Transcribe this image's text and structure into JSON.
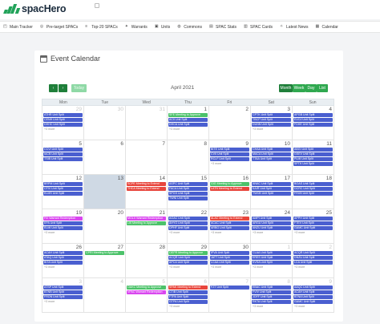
{
  "brand": {
    "name": "spacHero"
  },
  "nav": [
    {
      "icon": "grid-icon",
      "glyph": "◰",
      "label": "Main Tracker"
    },
    {
      "icon": "target-icon",
      "glyph": "◎",
      "label": "Pre-target SPACs"
    },
    {
      "icon": "list-icon",
      "glyph": "≡",
      "label": "Top-20 SPACs"
    },
    {
      "icon": "ticket-icon",
      "glyph": "✦",
      "label": "Warrants"
    },
    {
      "icon": "units-icon",
      "glyph": "▣",
      "label": "Units"
    },
    {
      "icon": "commons-icon",
      "glyph": "◍",
      "label": "Commons"
    },
    {
      "icon": "stats-icon",
      "glyph": "▤",
      "label": "SPAC Stats"
    },
    {
      "icon": "cards-icon",
      "glyph": "▥",
      "label": "SPAC Cards"
    },
    {
      "icon": "news-icon",
      "glyph": "✧",
      "label": "Latest News"
    },
    {
      "icon": "calendar-icon",
      "glyph": "▦",
      "label": "Calendar"
    }
  ],
  "calendar": {
    "title": "Event Calendar",
    "month_title": "April 2021",
    "today_label": "Today",
    "views": {
      "month": "Month",
      "week": "Week",
      "day": "Day",
      "list": "List"
    },
    "prev_symbol": "‹",
    "next_symbol": "›",
    "colors": {
      "blue": "#4a5fd0",
      "red": "#e8453c",
      "green": "#4cc26a",
      "magenta": "#d946ef"
    },
    "days_of_week": [
      "Mon",
      "Tue",
      "Wed",
      "Thu",
      "Fri",
      "Sat",
      "Sun"
    ],
    "weeks": [
      [
        {
          "n": "29",
          "other": true,
          "events": [
            {
              "t": "ATHR Unit Split",
              "c": "blue"
            },
            {
              "t": "CENH Unit Split",
              "c": "blue"
            },
            {
              "t": "DHHC Unit Split",
              "c": "blue"
            }
          ],
          "more": "+3 more"
        },
        {
          "n": "30",
          "other": true,
          "events": []
        },
        {
          "n": "31",
          "other": true,
          "events": []
        },
        {
          "n": "1",
          "events": [
            {
              "t": "SFE Meeting to Approve",
              "c": "green"
            },
            {
              "t": "ACII Unit Split",
              "c": "blue"
            },
            {
              "t": "DHCA Unit Split",
              "c": "blue"
            }
          ],
          "more": "+3 more"
        },
        {
          "n": "2",
          "events": []
        },
        {
          "n": "3",
          "events": [
            {
              "t": "CPTK Unit Split",
              "c": "blue"
            },
            {
              "t": "TBCP Unit Split",
              "c": "blue"
            },
            {
              "t": "DUNN Unit Split",
              "c": "blue"
            }
          ],
          "more": "+3 more"
        },
        {
          "n": "4",
          "events": [
            {
              "t": "APGB Unit Split",
              "c": "blue"
            },
            {
              "t": "EVOJ Unit Split",
              "c": "blue"
            },
            {
              "t": "FDHE Unit Split",
              "c": "blue"
            }
          ]
        }
      ],
      [
        {
          "n": "5",
          "events": [
            {
              "t": "CCVI Unit Split",
              "c": "blue"
            },
            {
              "t": "IACB Unit Split",
              "c": "blue"
            },
            {
              "t": "TSIB Unit Split",
              "c": "blue"
            }
          ]
        },
        {
          "n": "6",
          "events": []
        },
        {
          "n": "7",
          "events": []
        },
        {
          "n": "8",
          "events": []
        },
        {
          "n": "9",
          "events": [
            {
              "t": "BITE Unit Split",
              "c": "blue"
            },
            {
              "t": "CVII Unit Split",
              "c": "blue"
            },
            {
              "t": "RCLF Unit Split",
              "c": "blue"
            }
          ],
          "more": "+3 more"
        },
        {
          "n": "10",
          "events": [
            {
              "t": "CHAA Unit Split",
              "c": "blue"
            },
            {
              "t": "MACA Unit Split",
              "c": "blue"
            },
            {
              "t": "TTAA Unit Split",
              "c": "blue"
            }
          ]
        },
        {
          "n": "11",
          "events": [
            {
              "t": "ABGI Unit Split",
              "c": "blue"
            },
            {
              "t": "GSEV Unit Split",
              "c": "blue"
            },
            {
              "t": "PLMI Unit Split",
              "c": "blue"
            },
            {
              "t": "SPTK Unit Split",
              "c": "blue"
            }
          ]
        }
      ],
      [
        {
          "n": "12",
          "events": [
            {
              "t": "BRPM Unit Split",
              "c": "blue"
            },
            {
              "t": "CFIV Unit Split",
              "c": "blue"
            },
            {
              "t": "ELMS Unit Split",
              "c": "blue"
            }
          ]
        },
        {
          "n": "13",
          "today": true,
          "events": []
        },
        {
          "n": "14",
          "events": [
            {
              "t": "SCPE Meeting to Extend",
              "c": "red"
            },
            {
              "t": "THCA Meeting to Extend",
              "c": "red"
            }
          ]
        },
        {
          "n": "15",
          "events": [
            {
              "t": "ASPC Unit Split",
              "c": "blue"
            },
            {
              "t": "FACA Unit Split",
              "c": "blue"
            },
            {
              "t": "SPGS Unit Split",
              "c": "blue"
            },
            {
              "t": "TWNI Unit Split",
              "c": "blue"
            }
          ]
        },
        {
          "n": "16",
          "events": [
            {
              "t": "GIG Meeting to Approve",
              "c": "green"
            },
            {
              "t": "LATN Meeting to Extend",
              "c": "red"
            }
          ]
        },
        {
          "n": "17",
          "events": [
            {
              "t": "ANAC Unit Split",
              "c": "blue"
            },
            {
              "t": "KAIR Unit Split",
              "c": "blue"
            },
            {
              "t": "TWCB Unit Split",
              "c": "blue"
            }
          ]
        },
        {
          "n": "18",
          "events": [
            {
              "t": "BOAS Unit Split",
              "c": "blue"
            },
            {
              "t": "DCRC Unit Split",
              "c": "blue"
            },
            {
              "t": "FRXB Unit Split",
              "c": "blue"
            }
          ]
        }
      ],
      [
        {
          "n": "19",
          "events": [
            {
              "t": "FIII Warrant Redemption",
              "c": "magenta"
            },
            {
              "t": "EPA Unit Split",
              "c": "blue"
            },
            {
              "t": "ELMI Unit Split",
              "c": "blue"
            }
          ],
          "more": "+3 more"
        },
        {
          "n": "20",
          "events": []
        },
        {
          "n": "21",
          "events": [
            {
              "t": "MOLX Warrant Redemption",
              "c": "magenta"
            },
            {
              "t": "LIII Meeting to Approve",
              "c": "green"
            }
          ]
        },
        {
          "n": "22",
          "events": [
            {
              "t": "AGAC Unit Split",
              "c": "blue"
            },
            {
              "t": "AHYO Unit Split",
              "c": "blue"
            },
            {
              "t": "DPHF Unit Split",
              "c": "blue"
            }
          ],
          "more": "+3 more"
        },
        {
          "n": "23",
          "events": [
            {
              "t": "ALAC Meeting to Extend",
              "c": "red"
            },
            {
              "t": "ACAC Unit Split",
              "c": "blue"
            },
            {
              "t": "ARBG Unit Split",
              "c": "blue"
            }
          ],
          "more": "+3 more"
        },
        {
          "n": "24",
          "events": [
            {
              "t": "AMPI Unit Split",
              "c": "blue"
            },
            {
              "t": "ARGU Unit Split",
              "c": "blue"
            },
            {
              "t": "ANZU Unit Split",
              "c": "blue"
            }
          ],
          "more": "+3 more"
        },
        {
          "n": "25",
          "events": [
            {
              "t": "APPH Unit Split",
              "c": "blue"
            },
            {
              "t": "FTEV Unit Split",
              "c": "blue"
            },
            {
              "t": "GAMC Unit Split",
              "c": "blue"
            }
          ],
          "more": "+3 more"
        }
      ],
      [
        {
          "n": "26",
          "events": [
            {
              "t": "ACAH Unit Split",
              "c": "blue"
            },
            {
              "t": "ATAQ Unit Split",
              "c": "blue"
            },
            {
              "t": "BITA Unit Split",
              "c": "blue"
            }
          ],
          "more": "+3 more"
        },
        {
          "n": "27",
          "events": [
            {
              "t": "CPRI Meeting to Approve",
              "c": "green"
            }
          ]
        },
        {
          "n": "28",
          "events": []
        },
        {
          "n": "29",
          "events": [
            {
              "t": "OEPR Meeting to Approve",
              "c": "green"
            },
            {
              "t": "ACQR Unit Split",
              "c": "blue"
            },
            {
              "t": "APCA Unit Split",
              "c": "blue"
            }
          ],
          "more": "+3 more"
        },
        {
          "n": "30",
          "events": [
            {
              "t": "IPVA Unit Split",
              "c": "blue"
            },
            {
              "t": "JATT Unit Split",
              "c": "blue"
            },
            {
              "t": "LCAA Unit Split",
              "c": "blue"
            }
          ],
          "more": "+3 more"
        },
        {
          "n": "1",
          "other": true,
          "events": [
            {
              "t": "CLAA Unit Split",
              "c": "blue"
            },
            {
              "t": "ERES Unit Split",
              "c": "blue"
            },
            {
              "t": "KVSA Unit Split",
              "c": "blue"
            }
          ],
          "more": "+3 more"
        },
        {
          "n": "2",
          "other": true,
          "events": [
            {
              "t": "ACQR Unit Split",
              "c": "blue"
            },
            {
              "t": "DNZU Unit Split",
              "c": "blue"
            },
            {
              "t": "LCA Unit Split",
              "c": "blue"
            }
          ],
          "more": "+3 more"
        }
      ],
      [
        {
          "n": "3",
          "other": true,
          "events": [
            {
              "t": "ATSP Unit Split",
              "c": "blue"
            },
            {
              "t": "BTNB Unit Split",
              "c": "blue"
            },
            {
              "t": "FRON Unit Split",
              "c": "blue"
            }
          ],
          "more": "+3 more"
        },
        {
          "n": "4",
          "other": true,
          "events": []
        },
        {
          "n": "5",
          "other": true,
          "events": [
            {
              "t": "OAKC Meeting to Approve",
              "c": "green"
            },
            {
              "t": "VPAC Warrant Redemption",
              "c": "magenta"
            }
          ]
        },
        {
          "n": "6",
          "other": true,
          "events": [
            {
              "t": "SPAK Meeting to Extend",
              "c": "red"
            },
            {
              "t": "CTIB Unit Split",
              "c": "blue"
            },
            {
              "t": "FTPA Unit Split",
              "c": "blue"
            },
            {
              "t": "GTPA Unit Split",
              "c": "blue"
            }
          ],
          "more": "+3 more"
        },
        {
          "n": "7",
          "other": true,
          "events": [
            {
              "t": "FZT Unit Split",
              "c": "blue"
            }
          ]
        },
        {
          "n": "8",
          "other": true,
          "events": [
            {
              "t": "EBAC Unit Split",
              "c": "blue"
            },
            {
              "t": "FVIV Unit Split",
              "c": "blue"
            },
            {
              "t": "JOFF Unit Split",
              "c": "blue"
            },
            {
              "t": "RKTA Unit Split",
              "c": "blue"
            }
          ],
          "more": "+3 more"
        },
        {
          "n": "9",
          "other": true,
          "events": [
            {
              "t": "AAQC Unit Split",
              "c": "blue"
            },
            {
              "t": "ACAH Unit Split",
              "c": "blue"
            },
            {
              "t": "BTNA Unit Split",
              "c": "blue"
            },
            {
              "t": "GAMC Unit Split",
              "c": "blue"
            }
          ],
          "more": "+3 more"
        }
      ]
    ]
  }
}
